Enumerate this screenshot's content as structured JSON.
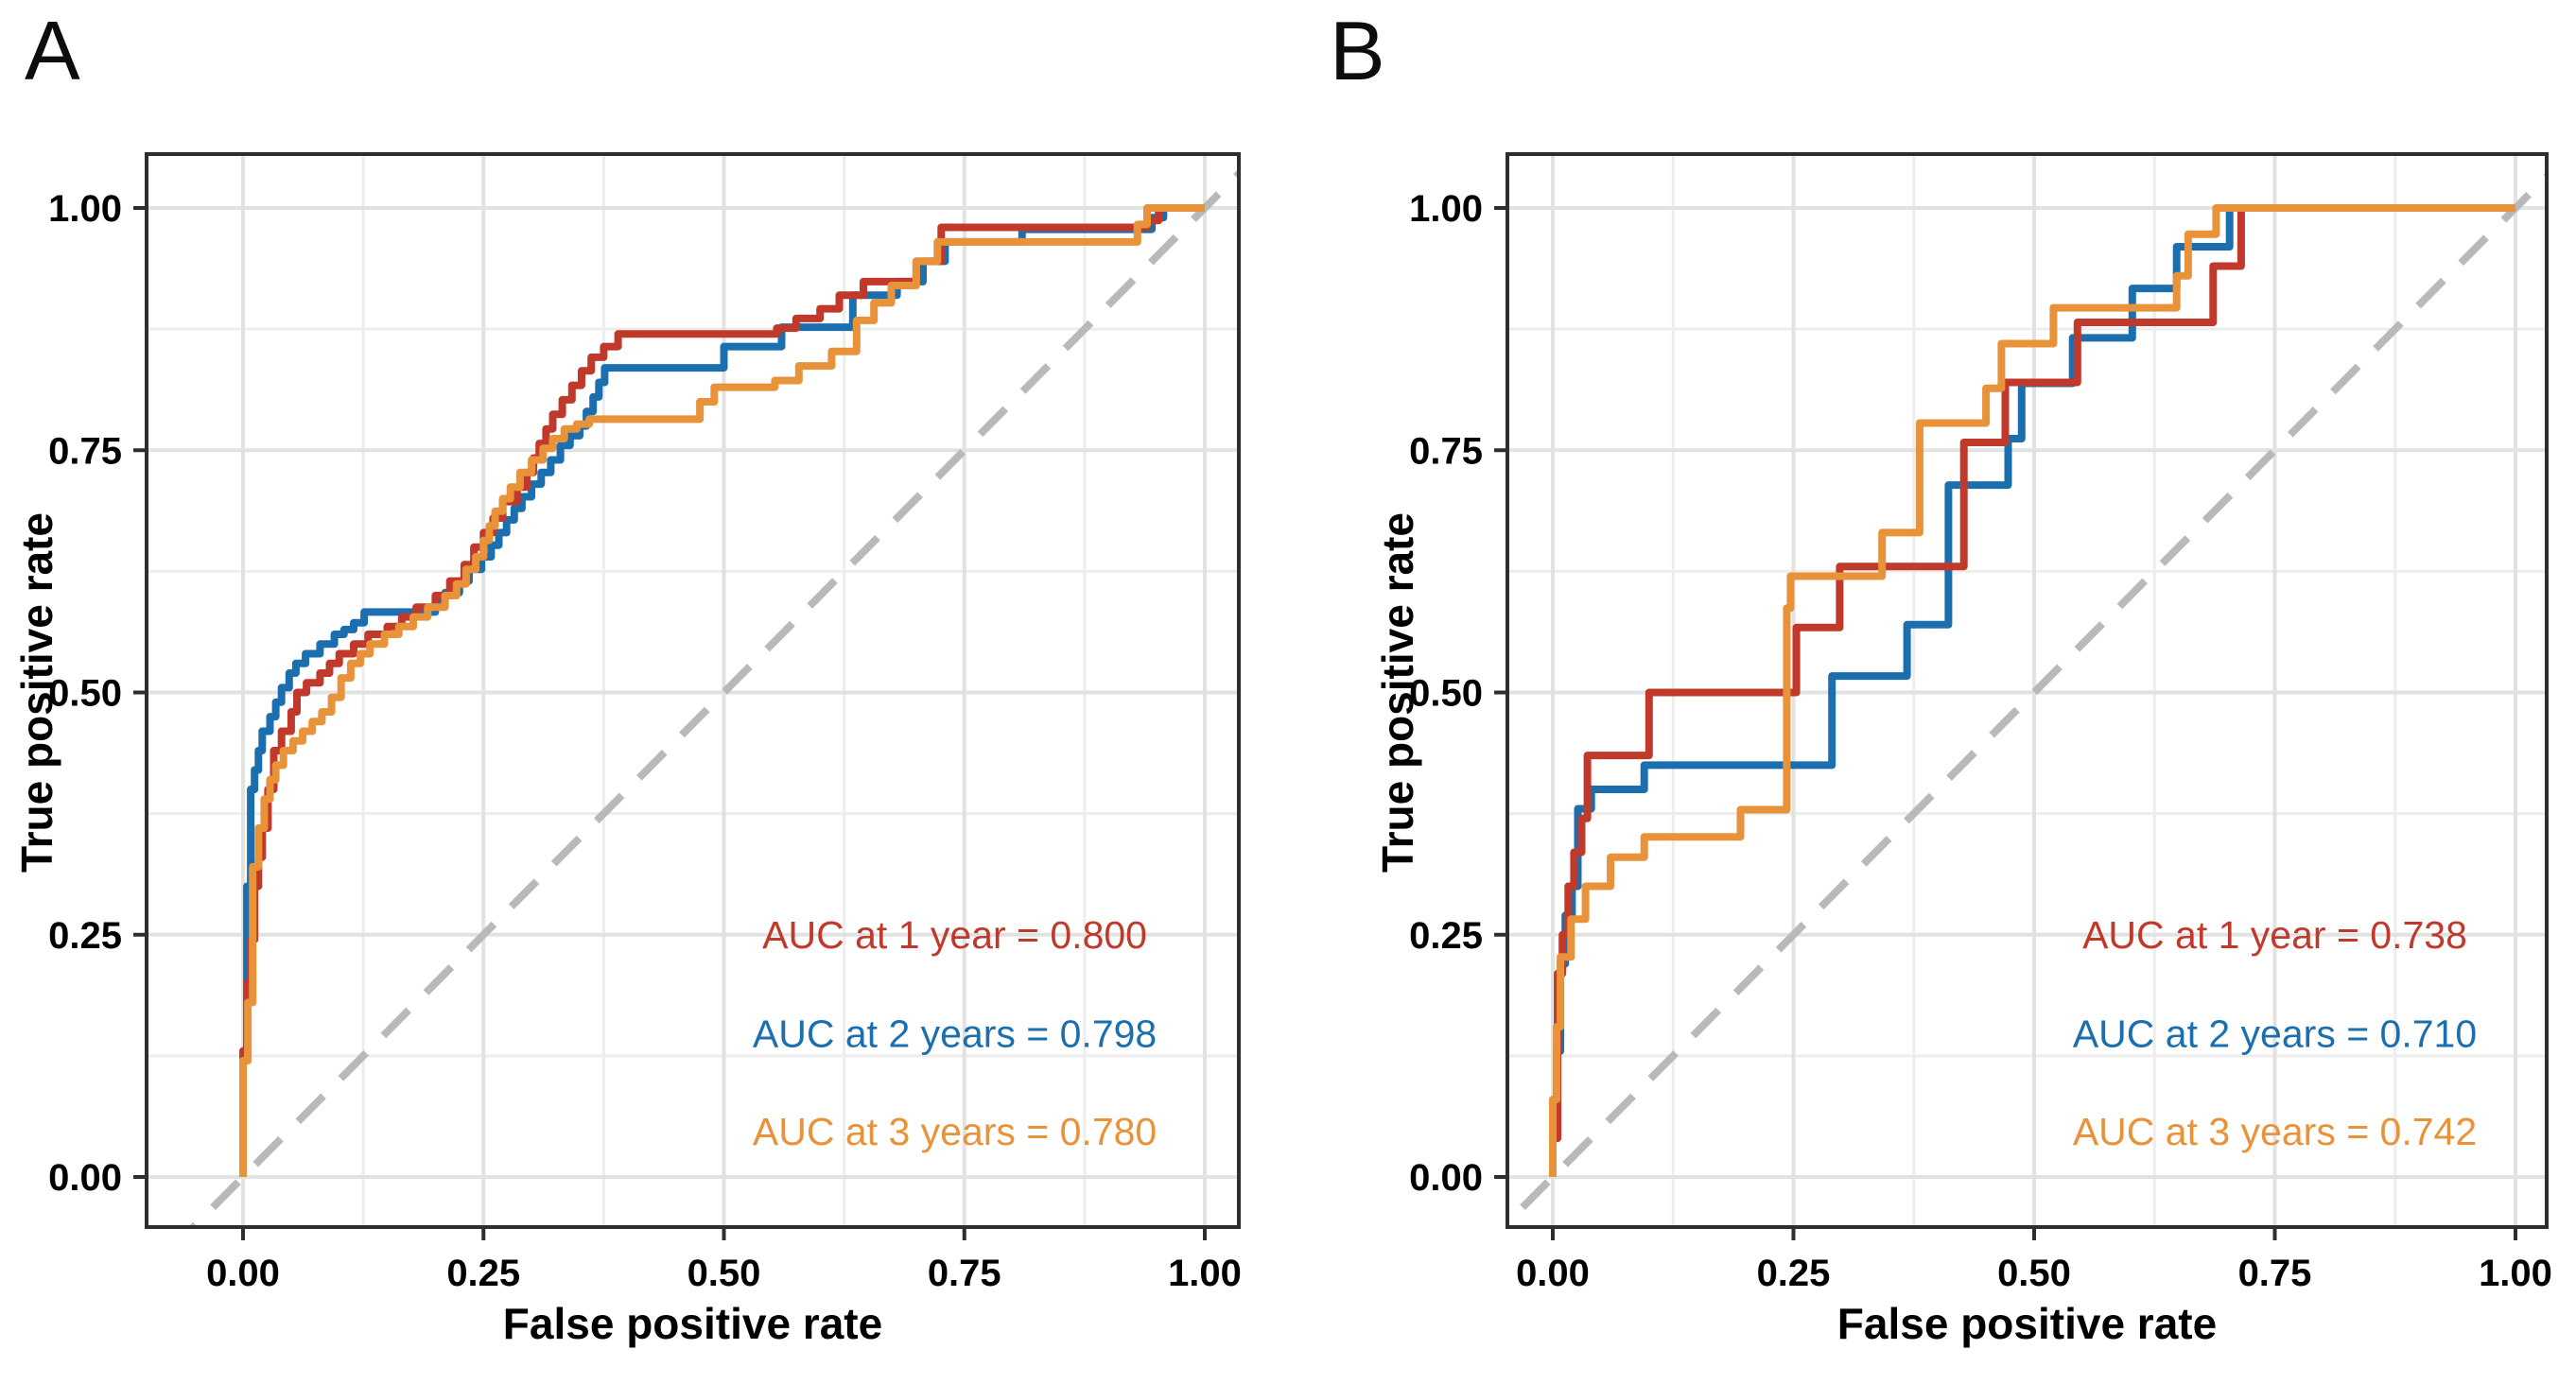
{
  "figure_type": "time-dependent ROC curves, two panels",
  "reference_line_color": "#b9b9b9",
  "chart_data": [
    {
      "type": "line",
      "subtype": "roc-step-curves",
      "letter": "A",
      "xlabel": "False positive rate",
      "ylabel": "True positive rate",
      "xlim": [
        0,
        1
      ],
      "ylim": [
        0,
        1
      ],
      "x_tick_labels": [
        "0.00",
        "0.25",
        "0.50",
        "0.75",
        "1.00"
      ],
      "y_tick_labels": [
        "0.00",
        "0.25",
        "0.50",
        "0.75",
        "1.00"
      ],
      "x_tick_values": [
        0,
        0.25,
        0.5,
        0.75,
        1
      ],
      "y_tick_values": [
        0,
        0.25,
        0.5,
        0.75,
        1
      ],
      "grid": "on",
      "diagonal_reference": "dashed gray y = x line",
      "annotations": [
        {
          "text": "AUC at 1 year = 0.800",
          "color": "#c0392b",
          "x": 0.74,
          "y": 0.25
        },
        {
          "text": "AUC at 2 years = 0.798",
          "color": "#1c6fae",
          "x": 0.74,
          "y": 0.148
        },
        {
          "text": "AUC at 3 years = 0.780",
          "color": "#e8923a",
          "x": 0.74,
          "y": 0.047
        }
      ],
      "series": [
        {
          "name": "AUC at 2 years",
          "auc": 0.798,
          "color": "#1c6fae",
          "points": [
            [
              0,
              0
            ],
            [
              0,
              0.13
            ],
            [
              0.004,
              0.3
            ],
            [
              0.008,
              0.4
            ],
            [
              0.012,
              0.42
            ],
            [
              0.016,
              0.44
            ],
            [
              0.02,
              0.46
            ],
            [
              0.028,
              0.475
            ],
            [
              0.034,
              0.49
            ],
            [
              0.04,
              0.505
            ],
            [
              0.048,
              0.52
            ],
            [
              0.055,
              0.53
            ],
            [
              0.065,
              0.54
            ],
            [
              0.08,
              0.55
            ],
            [
              0.095,
              0.56
            ],
            [
              0.105,
              0.565
            ],
            [
              0.115,
              0.572
            ],
            [
              0.126,
              0.583
            ],
            [
              0.2,
              0.593
            ],
            [
              0.21,
              0.603
            ],
            [
              0.225,
              0.615
            ],
            [
              0.235,
              0.627
            ],
            [
              0.248,
              0.64
            ],
            [
              0.258,
              0.652
            ],
            [
              0.266,
              0.665
            ],
            [
              0.274,
              0.678
            ],
            [
              0.282,
              0.69
            ],
            [
              0.29,
              0.702
            ],
            [
              0.3,
              0.715
            ],
            [
              0.31,
              0.727
            ],
            [
              0.32,
              0.74
            ],
            [
              0.33,
              0.755
            ],
            [
              0.34,
              0.765
            ],
            [
              0.35,
              0.775
            ],
            [
              0.357,
              0.79
            ],
            [
              0.364,
              0.805
            ],
            [
              0.37,
              0.82
            ],
            [
              0.376,
              0.835
            ],
            [
              0.5,
              0.857
            ],
            [
              0.56,
              0.877
            ],
            [
              0.634,
              0.91
            ],
            [
              0.68,
              0.924
            ],
            [
              0.707,
              0.945
            ],
            [
              0.73,
              0.965
            ],
            [
              0.81,
              0.978
            ],
            [
              0.945,
              0.99
            ],
            [
              0.957,
              1
            ],
            [
              1,
              1
            ]
          ]
        },
        {
          "name": "AUC at 1 year",
          "auc": 0.8,
          "color": "#c0392b",
          "points": [
            [
              0,
              0
            ],
            [
              0,
              0.13
            ],
            [
              0.004,
              0.2
            ],
            [
              0.008,
              0.245
            ],
            [
              0.012,
              0.3
            ],
            [
              0.016,
              0.33
            ],
            [
              0.02,
              0.36
            ],
            [
              0.026,
              0.4
            ],
            [
              0.032,
              0.44
            ],
            [
              0.04,
              0.46
            ],
            [
              0.05,
              0.48
            ],
            [
              0.056,
              0.5
            ],
            [
              0.066,
              0.51
            ],
            [
              0.08,
              0.52
            ],
            [
              0.09,
              0.53
            ],
            [
              0.1,
              0.54
            ],
            [
              0.115,
              0.55
            ],
            [
              0.13,
              0.56
            ],
            [
              0.15,
              0.568
            ],
            [
              0.165,
              0.578
            ],
            [
              0.18,
              0.588
            ],
            [
              0.2,
              0.6
            ],
            [
              0.215,
              0.615
            ],
            [
              0.23,
              0.632
            ],
            [
              0.24,
              0.65
            ],
            [
              0.25,
              0.665
            ],
            [
              0.26,
              0.68
            ],
            [
              0.27,
              0.697
            ],
            [
              0.285,
              0.712
            ],
            [
              0.295,
              0.727
            ],
            [
              0.302,
              0.742
            ],
            [
              0.308,
              0.757
            ],
            [
              0.315,
              0.772
            ],
            [
              0.322,
              0.787
            ],
            [
              0.332,
              0.802
            ],
            [
              0.342,
              0.817
            ],
            [
              0.352,
              0.832
            ],
            [
              0.362,
              0.846
            ],
            [
              0.375,
              0.857
            ],
            [
              0.39,
              0.87
            ],
            [
              0.555,
              0.876
            ],
            [
              0.575,
              0.886
            ],
            [
              0.6,
              0.896
            ],
            [
              0.62,
              0.91
            ],
            [
              0.645,
              0.924
            ],
            [
              0.7,
              0.945
            ],
            [
              0.726,
              0.98
            ],
            [
              0.94,
              0.987
            ],
            [
              0.952,
              1
            ],
            [
              1,
              1
            ]
          ]
        },
        {
          "name": "AUC at 3 years",
          "auc": 0.78,
          "color": "#e8923a",
          "points": [
            [
              0,
              0
            ],
            [
              0,
              0.12
            ],
            [
              0.005,
              0.18
            ],
            [
              0.01,
              0.25
            ],
            [
              0.01,
              0.32
            ],
            [
              0.016,
              0.36
            ],
            [
              0.022,
              0.39
            ],
            [
              0.028,
              0.41
            ],
            [
              0.034,
              0.425
            ],
            [
              0.042,
              0.44
            ],
            [
              0.052,
              0.45
            ],
            [
              0.062,
              0.46
            ],
            [
              0.072,
              0.47
            ],
            [
              0.082,
              0.48
            ],
            [
              0.092,
              0.495
            ],
            [
              0.102,
              0.515
            ],
            [
              0.112,
              0.53
            ],
            [
              0.122,
              0.54
            ],
            [
              0.132,
              0.55
            ],
            [
              0.147,
              0.56
            ],
            [
              0.162,
              0.568
            ],
            [
              0.177,
              0.578
            ],
            [
              0.192,
              0.588
            ],
            [
              0.21,
              0.6
            ],
            [
              0.222,
              0.612
            ],
            [
              0.232,
              0.627
            ],
            [
              0.242,
              0.64
            ],
            [
              0.25,
              0.657
            ],
            [
              0.256,
              0.672
            ],
            [
              0.262,
              0.687
            ],
            [
              0.27,
              0.7
            ],
            [
              0.278,
              0.712
            ],
            [
              0.288,
              0.727
            ],
            [
              0.3,
              0.74
            ],
            [
              0.312,
              0.752
            ],
            [
              0.322,
              0.762
            ],
            [
              0.334,
              0.772
            ],
            [
              0.347,
              0.777
            ],
            [
              0.36,
              0.782
            ],
            [
              0.475,
              0.8
            ],
            [
              0.49,
              0.815
            ],
            [
              0.553,
              0.822
            ],
            [
              0.578,
              0.837
            ],
            [
              0.612,
              0.852
            ],
            [
              0.638,
              0.884
            ],
            [
              0.656,
              0.902
            ],
            [
              0.674,
              0.92
            ],
            [
              0.7,
              0.945
            ],
            [
              0.722,
              0.965
            ],
            [
              0.93,
              0.983
            ],
            [
              0.94,
              1
            ],
            [
              1,
              1
            ]
          ]
        }
      ]
    },
    {
      "type": "line",
      "subtype": "roc-step-curves",
      "letter": "B",
      "xlabel": "False positive rate",
      "ylabel": "True positive rate",
      "xlim": [
        0,
        1
      ],
      "ylim": [
        0,
        1
      ],
      "x_tick_labels": [
        "0.00",
        "0.25",
        "0.50",
        "0.75",
        "1.00"
      ],
      "y_tick_labels": [
        "0.00",
        "0.25",
        "0.50",
        "0.75",
        "1.00"
      ],
      "x_tick_values": [
        0,
        0.25,
        0.5,
        0.75,
        1
      ],
      "y_tick_values": [
        0,
        0.25,
        0.5,
        0.75,
        1
      ],
      "grid": "on",
      "diagonal_reference": "dashed gray y = x line",
      "annotations": [
        {
          "text": "AUC at 1 year = 0.738",
          "color": "#c0392b",
          "x": 0.75,
          "y": 0.25
        },
        {
          "text": "AUC at 2 years = 0.710",
          "color": "#1c6fae",
          "x": 0.75,
          "y": 0.148
        },
        {
          "text": "AUC at 3 years = 0.742",
          "color": "#e8923a",
          "x": 0.75,
          "y": 0.047
        }
      ],
      "series": [
        {
          "name": "AUC at 2 years",
          "auc": 0.71,
          "color": "#1c6fae",
          "points": [
            [
              0,
              0
            ],
            [
              0,
              0.05
            ],
            [
              0.004,
              0.13
            ],
            [
              0.008,
              0.22
            ],
            [
              0.013,
              0.27
            ],
            [
              0.02,
              0.3
            ],
            [
              0.026,
              0.38
            ],
            [
              0.04,
              0.4
            ],
            [
              0.095,
              0.425
            ],
            [
              0.29,
              0.517
            ],
            [
              0.368,
              0.57
            ],
            [
              0.411,
              0.714
            ],
            [
              0.473,
              0.762
            ],
            [
              0.487,
              0.819
            ],
            [
              0.54,
              0.866
            ],
            [
              0.602,
              0.917
            ],
            [
              0.648,
              0.96
            ],
            [
              0.703,
              1
            ],
            [
              1,
              1
            ]
          ]
        },
        {
          "name": "AUC at 1 year",
          "auc": 0.738,
          "color": "#c0392b",
          "points": [
            [
              0,
              0
            ],
            [
              0,
              0.04
            ],
            [
              0.005,
              0.21
            ],
            [
              0.01,
              0.25
            ],
            [
              0.016,
              0.3
            ],
            [
              0.022,
              0.335
            ],
            [
              0.03,
              0.37
            ],
            [
              0.036,
              0.435
            ],
            [
              0.1,
              0.5
            ],
            [
              0.253,
              0.567
            ],
            [
              0.298,
              0.63
            ],
            [
              0.427,
              0.758
            ],
            [
              0.47,
              0.82
            ],
            [
              0.545,
              0.882
            ],
            [
              0.686,
              0.94
            ],
            [
              0.715,
              1
            ],
            [
              1,
              1
            ]
          ]
        },
        {
          "name": "AUC at 3 years",
          "auc": 0.742,
          "color": "#e8923a",
          "points": [
            [
              0,
              0
            ],
            [
              0,
              0.08
            ],
            [
              0.004,
              0.155
            ],
            [
              0.008,
              0.227
            ],
            [
              0.019,
              0.266
            ],
            [
              0.034,
              0.3
            ],
            [
              0.06,
              0.33
            ],
            [
              0.095,
              0.351
            ],
            [
              0.195,
              0.379
            ],
            [
              0.243,
              0.587
            ],
            [
              0.247,
              0.62
            ],
            [
              0.342,
              0.665
            ],
            [
              0.381,
              0.778
            ],
            [
              0.45,
              0.814
            ],
            [
              0.466,
              0.86
            ],
            [
              0.52,
              0.897
            ],
            [
              0.648,
              0.93
            ],
            [
              0.66,
              0.973
            ],
            [
              0.689,
              1
            ],
            [
              1,
              1
            ]
          ]
        }
      ]
    }
  ]
}
